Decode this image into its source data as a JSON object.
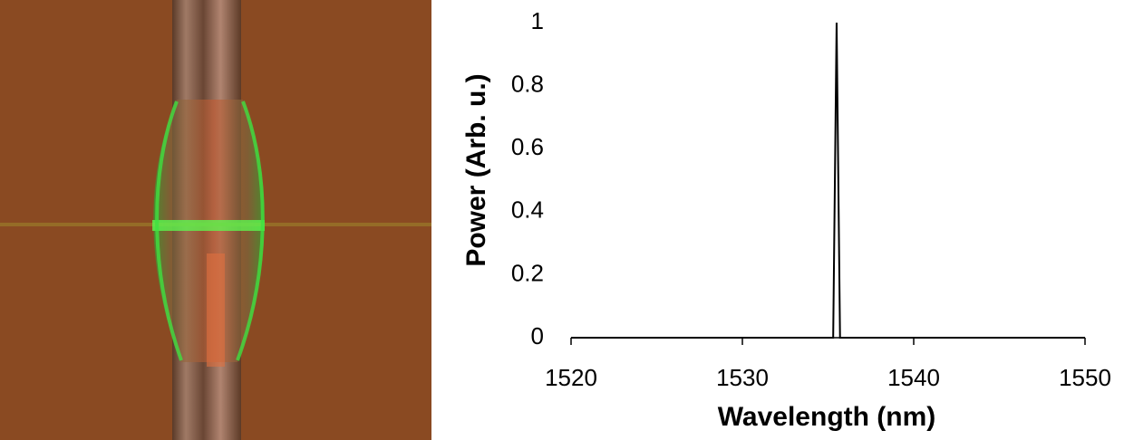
{
  "chart_data": {
    "type": "line",
    "x_label": "Wavelength (nm)",
    "y_label": "Power (Arb. u.)",
    "x": [
      1520,
      1535.3,
      1535.5,
      1535.7,
      1550
    ],
    "values": [
      0,
      0,
      1,
      0,
      0
    ],
    "color": "#000000",
    "xlim": [
      1520,
      1550
    ],
    "xticks": [
      1520,
      1530,
      1540,
      1550
    ],
    "ylim": [
      0,
      1
    ],
    "yticks": [
      0,
      0.2,
      0.4,
      0.6,
      0.8,
      1
    ],
    "grid": false
  }
}
